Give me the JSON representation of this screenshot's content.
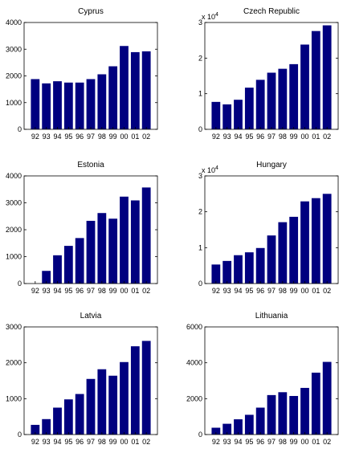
{
  "bar_color": "#00007f",
  "chart_data": [
    {
      "type": "bar",
      "title": "Cyprus",
      "categories": [
        "92",
        "93",
        "94",
        "95",
        "96",
        "97",
        "98",
        "99",
        "00",
        "01",
        "02"
      ],
      "values": [
        1880,
        1720,
        1800,
        1750,
        1750,
        1880,
        2060,
        2360,
        3120,
        2890,
        2920
      ],
      "ylim": [
        0,
        4000
      ],
      "yticks": [
        0,
        1000,
        2000,
        3000,
        4000
      ],
      "ytick_labels": [
        "0",
        "1000",
        "2000",
        "3000",
        "4000"
      ],
      "multiplier": "",
      "multiplier_exp": "",
      "grid": false
    },
    {
      "type": "bar",
      "title": "Czech Republic",
      "categories": [
        "92",
        "93",
        "94",
        "95",
        "96",
        "97",
        "98",
        "99",
        "00",
        "01",
        "02"
      ],
      "values": [
        7700,
        7000,
        8300,
        11700,
        13900,
        15900,
        17000,
        18300,
        23800,
        27600,
        29200
      ],
      "ylim": [
        0,
        30000
      ],
      "yticks": [
        0,
        10000,
        20000,
        30000
      ],
      "ytick_labels": [
        "0",
        "1",
        "2",
        "3"
      ],
      "multiplier": "x 10",
      "multiplier_exp": "4",
      "grid": false
    },
    {
      "type": "bar",
      "title": "Estonia",
      "categories": [
        "92",
        "93",
        "94",
        "95",
        "96",
        "97",
        "98",
        "99",
        "00",
        "01",
        "02"
      ],
      "values": [
        0,
        470,
        1050,
        1400,
        1690,
        2330,
        2620,
        2410,
        3230,
        3090,
        3570
      ],
      "ylim": [
        0,
        4000
      ],
      "yticks": [
        0,
        1000,
        2000,
        3000,
        4000
      ],
      "ytick_labels": [
        "0",
        "1000",
        "2000",
        "3000",
        "4000"
      ],
      "multiplier": "",
      "multiplier_exp": "",
      "grid": false
    },
    {
      "type": "bar",
      "title": "Hungary",
      "categories": [
        "92",
        "93",
        "94",
        "95",
        "96",
        "97",
        "98",
        "99",
        "00",
        "01",
        "02"
      ],
      "values": [
        5300,
        6300,
        7900,
        8700,
        9900,
        13400,
        17100,
        18600,
        22900,
        23800,
        25000
      ],
      "ylim": [
        0,
        30000
      ],
      "yticks": [
        0,
        10000,
        20000,
        30000
      ],
      "ytick_labels": [
        "0",
        "1",
        "2",
        "3"
      ],
      "multiplier": "x 10",
      "multiplier_exp": "4",
      "grid": false
    },
    {
      "type": "bar",
      "title": "Latvia",
      "categories": [
        "92",
        "93",
        "94",
        "95",
        "96",
        "97",
        "98",
        "99",
        "00",
        "01",
        "02"
      ],
      "values": [
        270,
        430,
        750,
        980,
        1130,
        1550,
        1820,
        1640,
        2020,
        2460,
        2610
      ],
      "ylim": [
        0,
        3000
      ],
      "yticks": [
        0,
        1000,
        2000,
        3000
      ],
      "ytick_labels": [
        "0",
        "1000",
        "2000",
        "3000"
      ],
      "multiplier": "",
      "multiplier_exp": "",
      "grid": false
    },
    {
      "type": "bar",
      "title": "Lithuania",
      "categories": [
        "92",
        "93",
        "94",
        "95",
        "96",
        "97",
        "98",
        "99",
        "00",
        "01",
        "02"
      ],
      "values": [
        380,
        600,
        850,
        1100,
        1500,
        2200,
        2360,
        2150,
        2600,
        3450,
        4050
      ],
      "ylim": [
        0,
        6000
      ],
      "yticks": [
        0,
        2000,
        4000,
        6000
      ],
      "ytick_labels": [
        "0",
        "2000",
        "4000",
        "6000"
      ],
      "multiplier": "",
      "multiplier_exp": "",
      "grid": false
    }
  ]
}
